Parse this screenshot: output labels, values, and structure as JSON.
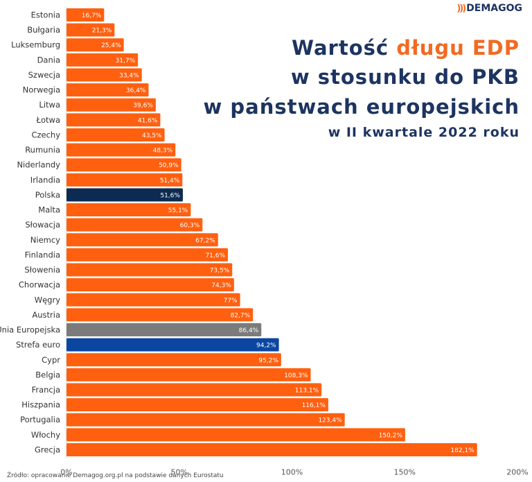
{
  "brand": {
    "name": "DEMAGOG",
    "icon": "signal-waves-icon"
  },
  "title": {
    "line1_pre": "Wartość ",
    "line1_accent": "długu EDP",
    "line2": "w stosunku do PKB",
    "line3": "w państwach europejskich",
    "line4": "w II kwartale 2022 roku"
  },
  "source": "Źródło: opracowanie Demagog.org.pl na podstawie danych Eurostatu",
  "colors": {
    "bar": "#ff6010",
    "poland": "#0d2b52",
    "eu": "#7b7b7b",
    "euro": "#0b47a1",
    "title": "#1d3461",
    "accent": "#f26a21"
  },
  "chart_data": {
    "type": "bar",
    "orientation": "horizontal",
    "title": "Wartość długu EDP w stosunku do PKB w państwach europejskich w II kwartale 2022 roku",
    "xlabel": "",
    "ylabel": "",
    "xlim": [
      0,
      200
    ],
    "xticks": [
      0,
      50,
      100,
      150,
      200
    ],
    "xtick_labels": [
      "0%",
      "50%",
      "100%",
      "150%",
      "200%"
    ],
    "categories": [
      "Estonia",
      "Bułgaria",
      "Luksemburg",
      "Dania",
      "Szwecja",
      "Norwegia",
      "Litwa",
      "Łotwa",
      "Czechy",
      "Rumunia",
      "Niderlandy",
      "Irlandia",
      "Polska",
      "Malta",
      "Słowacja",
      "Niemcy",
      "Finlandia",
      "Słowenia",
      "Chorwacja",
      "Węgry",
      "Austria",
      "Unia Europejska",
      "Strefa euro",
      "Cypr",
      "Belgia",
      "Francja",
      "Hiszpania",
      "Portugalia",
      "Włochy",
      "Grecja"
    ],
    "values": [
      16.7,
      21.3,
      25.4,
      31.7,
      33.4,
      36.4,
      39.6,
      41.6,
      43.5,
      48.3,
      50.9,
      51.4,
      51.6,
      55.1,
      60.3,
      67.2,
      71.6,
      73.5,
      74.3,
      77,
      82.7,
      86.4,
      94.2,
      95.2,
      108.3,
      113.1,
      116.1,
      123.4,
      150.2,
      182.1
    ],
    "value_labels": [
      "16,7%",
      "21,3%",
      "25,4%",
      "31,7%",
      "33,4%",
      "36,4%",
      "39,6%",
      "41,6%",
      "43,5%",
      "48,3%",
      "50,9%",
      "51,4%",
      "51,6%",
      "55,1%",
      "60,3%",
      "67,2%",
      "71,6%",
      "73,5%",
      "74,3%",
      "77%",
      "82,7%",
      "86,4%",
      "94,2%",
      "95,2%",
      "108,3%",
      "113,1%",
      "116,1%",
      "123,4%",
      "150,2%",
      "182,1%"
    ],
    "highlight": {
      "Polska": "poland",
      "Unia Europejska": "eu",
      "Strefa euro": "euro"
    }
  }
}
